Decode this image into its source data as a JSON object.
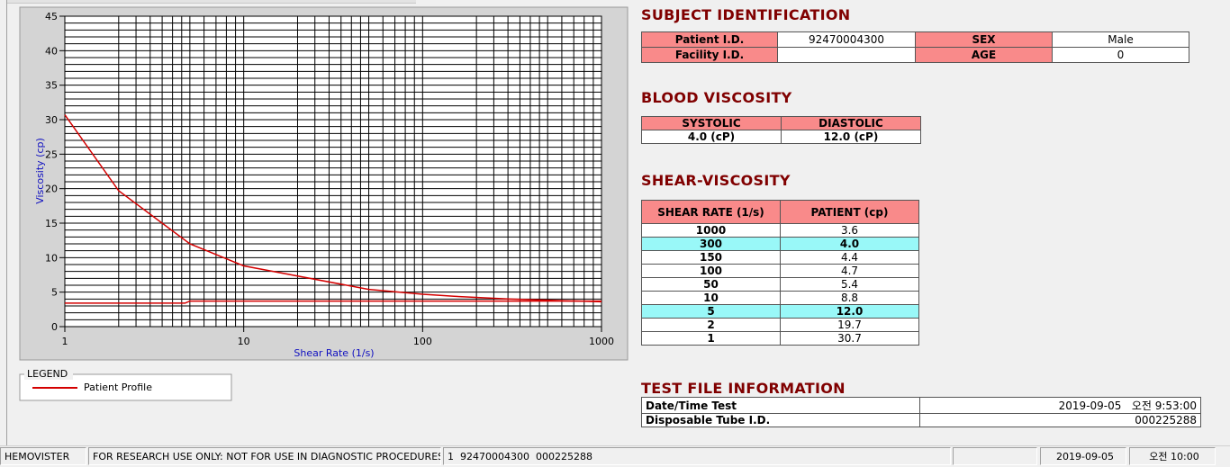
{
  "chart_data": {
    "type": "line",
    "x_label": "Shear Rate (1/s)",
    "y_label": "Viscosity (cp)",
    "xscale": "log",
    "xlim": [
      1,
      1000
    ],
    "xticks": [
      1,
      10,
      100,
      1000
    ],
    "ylim": [
      0,
      45
    ],
    "yticks": [
      0,
      5,
      10,
      15,
      20,
      25,
      30,
      35,
      40,
      45
    ],
    "grid": true,
    "series": [
      {
        "name": "Patient Profile",
        "color": "#d40000",
        "x": [
          1,
          2,
          5,
          10,
          50,
          100,
          150,
          300,
          1000
        ],
        "values": [
          30.7,
          19.7,
          12.0,
          8.8,
          5.4,
          4.7,
          4.4,
          4.0,
          3.6
        ]
      },
      {
        "color": "#d40000",
        "x": [
          1,
          4.7,
          5,
          1000
        ],
        "values": [
          3.4,
          3.4,
          3.7,
          3.7
        ]
      }
    ],
    "legend_title": "LEGEND"
  },
  "subject": {
    "title": "SUBJECT IDENTIFICATION",
    "rows": [
      [
        "Patient I.D.",
        "92470004300",
        "SEX",
        "Male"
      ],
      [
        "Facility I.D.",
        "",
        "AGE",
        "0"
      ]
    ]
  },
  "blood_viscosity": {
    "title": "BLOOD VISCOSITY",
    "header": [
      "SYSTOLIC",
      "DIASTOLIC"
    ],
    "row": [
      "4.0 (cP)",
      "12.0 (cP)"
    ]
  },
  "shear_viscosity": {
    "title": "SHEAR-VISCOSITY",
    "header": [
      "SHEAR RATE (1/s)",
      "PATIENT (cp)"
    ],
    "highlight_color": "#99f8f8",
    "rows": [
      {
        "shear_rate": "1000",
        "patient": "3.6"
      },
      {
        "shear_rate": "300",
        "patient": "4.0",
        "highlight": true
      },
      {
        "shear_rate": "150",
        "patient": "4.4"
      },
      {
        "shear_rate": "100",
        "patient": "4.7"
      },
      {
        "shear_rate": "50",
        "patient": "5.4"
      },
      {
        "shear_rate": "10",
        "patient": "8.8"
      },
      {
        "shear_rate": "5",
        "patient": "12.0",
        "highlight": true
      },
      {
        "shear_rate": "2",
        "patient": "19.7"
      },
      {
        "shear_rate": "1",
        "patient": "30.7"
      }
    ]
  },
  "test_file": {
    "title": "TEST FILE INFORMATION",
    "rows": [
      [
        "Date/Time Test",
        "2019-09-05   오전 9:53:00"
      ],
      [
        "Disposable Tube I.D.",
        "000225288"
      ]
    ]
  },
  "status_bar": [
    "HEMOVISTER",
    "FOR RESEARCH USE ONLY: NOT FOR USE IN DIAGNOSTIC PROCEDURES",
    "1  92470004300  000225288",
    "2019-09-05",
    "오전 10:00"
  ]
}
